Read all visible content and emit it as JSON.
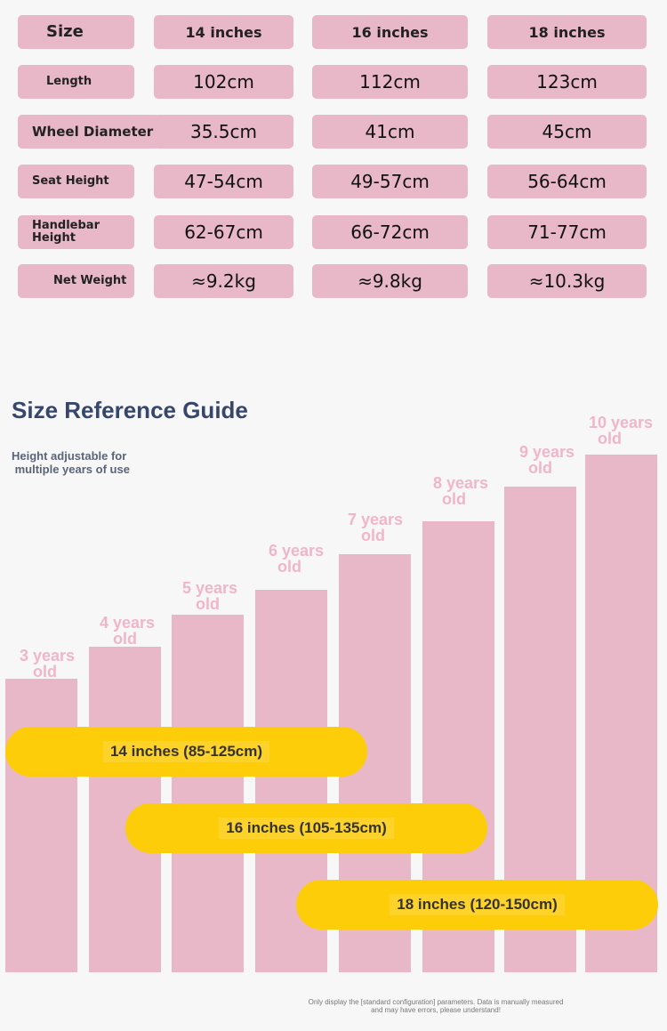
{
  "spec_table": {
    "headers": [
      "Size",
      "14 inches",
      "16 inches",
      "18 inches"
    ],
    "rows": [
      {
        "label": "Length",
        "values": [
          "102cm",
          "112cm",
          "123cm"
        ]
      },
      {
        "label": "Wheel Diameter",
        "values": [
          "35.5cm",
          "41cm",
          "45cm"
        ]
      },
      {
        "label": "Seat Height",
        "values": [
          "47-54cm",
          "49-57cm",
          "56-64cm"
        ]
      },
      {
        "label": "Handlebar\nHeight",
        "values": [
          "62-67cm",
          "66-72cm",
          "71-77cm"
        ]
      },
      {
        "label": "Net Weight",
        "values": [
          "≈9.2kg",
          "≈9.8kg",
          "≈10.3kg"
        ]
      }
    ]
  },
  "guide": {
    "title": "Size Reference Guide",
    "subtitle": "Height adjustable for\n multiple years of use",
    "ages": [
      "3 years\n   old",
      "4 years\n   old",
      "5 years\n   old",
      "6 years\n  old",
      "7 years\n   old",
      "8 years\n  old",
      "9 years\n  old",
      "10 years\n  old"
    ],
    "ranges": [
      "14 inches (85-125cm)",
      "16 inches (105-135cm)",
      "18 inches (120-150cm)"
    ]
  },
  "note": "Only display the [standard configuration] parameters. Data is manually measured and may have errors, please understand!"
}
